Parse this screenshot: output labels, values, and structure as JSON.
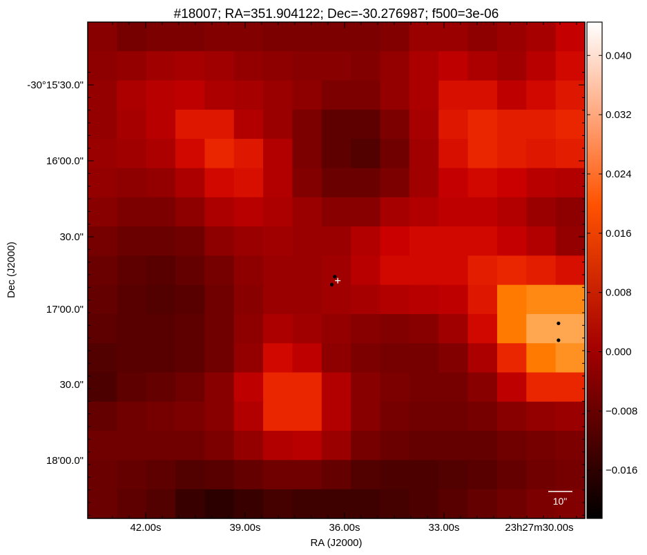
{
  "chart_data": {
    "type": "heatmap",
    "title": "#18007;  RA=351.904122;  Dec=-30.276987;  f500=3e-06",
    "xlabel": "RA (J2000)",
    "ylabel": "Dec (J2000)",
    "x_ticks": [
      "42.00s",
      "39.00s",
      "36.00s",
      "33.00s",
      "23h27m30.00s"
    ],
    "y_ticks": [
      "-30°15'30.0\"",
      "16'00.0\"",
      "30.0\"",
      "17'00.0\"",
      "30.0\"",
      "18'00.0\""
    ],
    "colorbar": {
      "ticks": [
        "0.040",
        "0.032",
        "0.024",
        "0.016",
        "0.008",
        "0.000",
        "−0.008",
        "−0.016"
      ],
      "tick_values": [
        0.04,
        0.032,
        0.024,
        0.016,
        0.008,
        0.0,
        -0.008,
        -0.016
      ],
      "vmin": -0.0225,
      "vmax": 0.0445,
      "colormap": "gist_heat"
    },
    "scale_bar_label": "10\"",
    "grid": false,
    "rows": 17,
    "cols": 17,
    "z": [
      [
        0.0,
        -0.003,
        -0.002,
        -0.002,
        -0.001,
        -0.001,
        -0.002,
        -0.002,
        -0.002,
        -0.002,
        -0.001,
        0.003,
        0.003,
        0.001,
        0.003,
        0.005,
        0.01
      ],
      [
        0.001,
        0.002,
        0.004,
        0.005,
        0.004,
        0.002,
        0.001,
        0.0,
        0.0,
        -0.001,
        0.002,
        0.006,
        0.009,
        0.006,
        0.004,
        0.008,
        0.012
      ],
      [
        0.002,
        0.006,
        0.008,
        0.009,
        0.006,
        0.005,
        0.003,
        0.001,
        -0.002,
        -0.002,
        0.002,
        0.006,
        0.013,
        0.013,
        0.009,
        0.012,
        0.014
      ],
      [
        0.002,
        0.005,
        0.008,
        0.014,
        0.014,
        0.007,
        0.003,
        -0.002,
        -0.007,
        -0.007,
        -0.002,
        0.005,
        0.014,
        0.016,
        0.015,
        0.015,
        0.016
      ],
      [
        0.003,
        0.004,
        0.006,
        0.012,
        0.016,
        0.014,
        0.007,
        -0.002,
        -0.007,
        -0.009,
        -0.004,
        0.004,
        0.013,
        0.016,
        0.015,
        0.014,
        0.015
      ],
      [
        0.002,
        0.001,
        0.002,
        0.006,
        0.012,
        0.013,
        0.007,
        -0.001,
        -0.005,
        -0.005,
        -0.002,
        0.004,
        0.01,
        0.012,
        0.011,
        0.008,
        0.007
      ],
      [
        0.0,
        -0.002,
        -0.002,
        0.001,
        0.006,
        0.008,
        0.006,
        0.003,
        0.0,
        0.0,
        0.005,
        0.007,
        0.009,
        0.009,
        0.007,
        0.003,
        0.001
      ],
      [
        -0.003,
        -0.005,
        -0.005,
        -0.004,
        0.001,
        0.003,
        0.004,
        0.003,
        0.003,
        0.007,
        0.011,
        0.012,
        0.012,
        0.012,
        0.01,
        0.007,
        0.002
      ],
      [
        -0.005,
        -0.007,
        -0.008,
        -0.006,
        -0.003,
        0.001,
        0.003,
        0.003,
        0.004,
        0.008,
        0.012,
        0.012,
        0.012,
        0.015,
        0.016,
        0.015,
        0.013
      ],
      [
        -0.006,
        -0.008,
        -0.009,
        -0.008,
        -0.004,
        0.0,
        0.003,
        0.003,
        0.004,
        0.005,
        0.007,
        0.008,
        0.009,
        0.014,
        0.027,
        0.029,
        0.029
      ],
      [
        -0.007,
        -0.008,
        -0.008,
        -0.007,
        -0.004,
        0.001,
        0.006,
        0.004,
        0.002,
        0.0,
        -0.001,
        0.0,
        0.004,
        0.012,
        0.027,
        0.033,
        0.033
      ],
      [
        -0.009,
        -0.008,
        -0.008,
        -0.007,
        -0.004,
        0.002,
        0.012,
        0.009,
        0.001,
        -0.002,
        -0.003,
        -0.003,
        -0.001,
        0.006,
        0.016,
        0.027,
        0.03
      ],
      [
        -0.01,
        -0.007,
        -0.006,
        -0.004,
        0.0,
        0.009,
        0.016,
        0.016,
        0.007,
        0.0,
        -0.002,
        -0.003,
        -0.003,
        0.0,
        0.009,
        0.016,
        0.016
      ],
      [
        -0.006,
        -0.004,
        -0.003,
        -0.002,
        0.0,
        0.007,
        0.016,
        0.016,
        0.007,
        0.0,
        -0.003,
        -0.004,
        -0.004,
        -0.003,
        0.0,
        0.002,
        0.003
      ],
      [
        -0.004,
        -0.004,
        -0.004,
        -0.004,
        -0.002,
        0.002,
        0.007,
        0.008,
        0.003,
        -0.003,
        -0.005,
        -0.006,
        -0.006,
        -0.006,
        -0.004,
        -0.003,
        -0.002
      ],
      [
        -0.005,
        -0.006,
        -0.007,
        -0.009,
        -0.008,
        -0.006,
        -0.004,
        -0.004,
        -0.006,
        -0.009,
        -0.01,
        -0.01,
        -0.009,
        -0.008,
        -0.006,
        -0.004,
        -0.003
      ],
      [
        -0.005,
        -0.007,
        -0.009,
        -0.013,
        -0.015,
        -0.013,
        -0.011,
        -0.012,
        -0.012,
        -0.012,
        -0.011,
        -0.01,
        -0.008,
        -0.006,
        -0.004,
        -0.002,
        -0.001
      ]
    ],
    "black_points_frac": [
      [
        0.497,
        0.513
      ],
      [
        0.491,
        0.529
      ],
      [
        0.947,
        0.607
      ],
      [
        0.947,
        0.641
      ]
    ],
    "white_marker_frac": [
      0.503,
      0.521
    ]
  }
}
